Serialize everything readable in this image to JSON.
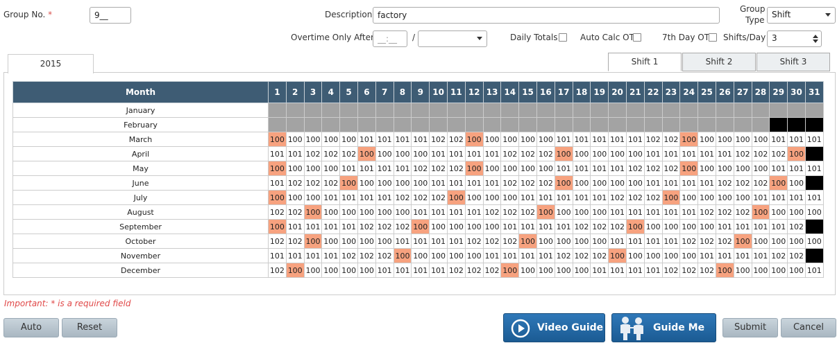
{
  "header": {
    "group_no_label": "Group No.",
    "required_mark": "*",
    "group_no_value": "9__",
    "description_label": "Description",
    "description_value": "factory",
    "group_type_label_1": "Group",
    "group_type_label_2": "Type",
    "group_type_value": "Shift",
    "overtime_label": "Overtime Only After",
    "overtime_time_value": "__:__",
    "overtime_separator": "/",
    "overtime_select_value": "",
    "daily_totals_label": "Daily Totals",
    "auto_calc_ot_label": "Auto Calc OT",
    "seventh_day_ot_label": "7th Day OT",
    "shifts_per_day_label": "Shifts/Day",
    "shifts_per_day_value": "3"
  },
  "year_tab": "2015",
  "shift_tabs": [
    "Shift 1",
    "Shift 2",
    "Shift 3"
  ],
  "grid": {
    "month_header": "Month",
    "days": [
      "1",
      "2",
      "3",
      "4",
      "5",
      "6",
      "7",
      "8",
      "9",
      "10",
      "11",
      "12",
      "13",
      "14",
      "15",
      "16",
      "17",
      "18",
      "19",
      "20",
      "21",
      "22",
      "23",
      "24",
      "25",
      "26",
      "27",
      "28",
      "29",
      "30",
      "31"
    ],
    "rows": [
      {
        "month": "January",
        "cells": [
          "",
          "",
          "",
          "",
          "",
          "",
          "",
          "",
          "",
          "",
          "",
          "",
          "",
          "",
          "",
          "",
          "",
          "",
          "",
          "",
          "",
          "",
          "",
          "",
          "",
          "",
          "",
          "",
          "",
          "",
          ""
        ]
      },
      {
        "month": "February",
        "cells": [
          "",
          "",
          "",
          "",
          "",
          "",
          "",
          "",
          "",
          "",
          "",
          "",
          "",
          "",
          "",
          "",
          "",
          "",
          "",
          "",
          "",
          "",
          "",
          "",
          "",
          "",
          "",
          "",
          "",
          "",
          ""
        ]
      },
      {
        "month": "March",
        "cells": [
          "100",
          "100",
          "100",
          "100",
          "100",
          "101",
          "101",
          "101",
          "101",
          "102",
          "102",
          "100",
          "100",
          "100",
          "100",
          "100",
          "101",
          "101",
          "101",
          "101",
          "101",
          "102",
          "102",
          "100",
          "100",
          "100",
          "100",
          "100",
          "101",
          "101",
          "101"
        ]
      },
      {
        "month": "April",
        "cells": [
          "101",
          "101",
          "102",
          "102",
          "102",
          "100",
          "100",
          "100",
          "100",
          "101",
          "101",
          "101",
          "101",
          "102",
          "102",
          "102",
          "100",
          "100",
          "100",
          "100",
          "100",
          "101",
          "101",
          "101",
          "101",
          "101",
          "102",
          "102",
          "102",
          "100",
          ""
        ]
      },
      {
        "month": "May",
        "cells": [
          "100",
          "100",
          "100",
          "100",
          "101",
          "101",
          "101",
          "101",
          "102",
          "102",
          "102",
          "100",
          "100",
          "100",
          "100",
          "100",
          "101",
          "101",
          "101",
          "101",
          "102",
          "102",
          "102",
          "100",
          "100",
          "100",
          "100",
          "100",
          "101",
          "101",
          "101"
        ]
      },
      {
        "month": "June",
        "cells": [
          "101",
          "102",
          "102",
          "102",
          "100",
          "100",
          "100",
          "100",
          "100",
          "101",
          "101",
          "101",
          "101",
          "102",
          "102",
          "102",
          "100",
          "100",
          "100",
          "100",
          "100",
          "101",
          "101",
          "101",
          "101",
          "102",
          "102",
          "102",
          "100",
          "100",
          ""
        ]
      },
      {
        "month": "July",
        "cells": [
          "100",
          "100",
          "100",
          "101",
          "101",
          "101",
          "101",
          "102",
          "102",
          "102",
          "100",
          "100",
          "100",
          "100",
          "101",
          "101",
          "101",
          "101",
          "101",
          "102",
          "102",
          "102",
          "100",
          "100",
          "100",
          "100",
          "100",
          "101",
          "101",
          "101",
          "101"
        ]
      },
      {
        "month": "August",
        "cells": [
          "102",
          "102",
          "100",
          "100",
          "100",
          "100",
          "100",
          "100",
          "101",
          "101",
          "101",
          "101",
          "102",
          "102",
          "102",
          "100",
          "100",
          "100",
          "100",
          "101",
          "101",
          "101",
          "101",
          "101",
          "102",
          "102",
          "102",
          "100",
          "100",
          "100",
          "100"
        ]
      },
      {
        "month": "September",
        "cells": [
          "100",
          "101",
          "101",
          "101",
          "101",
          "102",
          "102",
          "102",
          "100",
          "100",
          "100",
          "100",
          "100",
          "101",
          "101",
          "101",
          "101",
          "102",
          "102",
          "102",
          "100",
          "100",
          "100",
          "100",
          "100",
          "101",
          "101",
          "101",
          "101",
          "102",
          ""
        ]
      },
      {
        "month": "October",
        "cells": [
          "102",
          "102",
          "100",
          "100",
          "100",
          "100",
          "100",
          "101",
          "101",
          "101",
          "101",
          "102",
          "102",
          "102",
          "100",
          "100",
          "100",
          "100",
          "100",
          "101",
          "101",
          "101",
          "101",
          "102",
          "102",
          "102",
          "100",
          "100",
          "100",
          "100",
          "100"
        ]
      },
      {
        "month": "November",
        "cells": [
          "101",
          "101",
          "101",
          "101",
          "102",
          "102",
          "102",
          "100",
          "100",
          "100",
          "100",
          "100",
          "101",
          "101",
          "101",
          "101",
          "102",
          "102",
          "102",
          "100",
          "100",
          "100",
          "100",
          "100",
          "101",
          "101",
          "101",
          "101",
          "102",
          "102",
          ""
        ]
      },
      {
        "month": "December",
        "cells": [
          "102",
          "100",
          "100",
          "100",
          "100",
          "100",
          "101",
          "101",
          "101",
          "101",
          "102",
          "102",
          "102",
          "100",
          "100",
          "100",
          "100",
          "100",
          "101",
          "101",
          "101",
          "101",
          "102",
          "102",
          "102",
          "100",
          "100",
          "100",
          "100",
          "100",
          "101"
        ]
      }
    ],
    "colors": {
      "header_bg": "#3e5c74",
      "highlight": "#f7a27f",
      "disabled": "#a3a3a3",
      "invalid": "#000000"
    }
  },
  "footer": {
    "important_note": "Important: * is a required field",
    "auto_label": "Auto",
    "reset_label": "Reset",
    "video_guide_label": "Video Guide",
    "video_guide_icon": "play-circle-icon",
    "guide_me_label": "Guide Me",
    "guide_me_icon": "people-icon",
    "submit_label": "Submit",
    "cancel_label": "Cancel"
  }
}
